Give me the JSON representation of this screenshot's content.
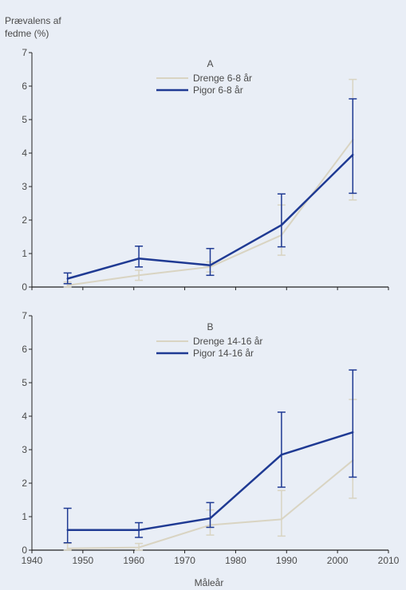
{
  "figure": {
    "ylabel_line1": "Prævalens af",
    "ylabel_line2": "fedme (%)",
    "xlabel": "Måleår",
    "background": "#e9eef6",
    "axis_color": "#222222"
  },
  "chart_data": [
    {
      "type": "line",
      "panel_label": "A",
      "ylim": [
        0,
        7
      ],
      "yticks": [
        0,
        1,
        2,
        3,
        4,
        5,
        6,
        7
      ],
      "xlim": [
        1940,
        2010
      ],
      "xticks": [
        1940,
        1950,
        1960,
        1970,
        1980,
        1990,
        2000,
        2010
      ],
      "show_xtick_labels": false,
      "legend_position": "top-center",
      "series": [
        {
          "name": "Drenge 6-8 år",
          "color": "#d9d4c2",
          "x": [
            1947,
            1961,
            1975,
            1989,
            2003
          ],
          "y": [
            0.05,
            0.35,
            0.6,
            1.55,
            4.4
          ],
          "err_low": [
            0.0,
            0.2,
            0.45,
            0.95,
            2.6
          ],
          "err_high": [
            0.15,
            0.5,
            0.75,
            2.45,
            6.2
          ]
        },
        {
          "name": "Pigor 6-8 år",
          "color": "#1f3a93",
          "x": [
            1947,
            1961,
            1975,
            1989,
            2003
          ],
          "y": [
            0.25,
            0.85,
            0.65,
            1.85,
            3.95
          ],
          "err_low": [
            0.1,
            0.6,
            0.35,
            1.2,
            2.8
          ],
          "err_high": [
            0.42,
            1.22,
            1.15,
            2.78,
            5.62
          ]
        }
      ]
    },
    {
      "type": "line",
      "panel_label": "B",
      "ylim": [
        0,
        7
      ],
      "yticks": [
        0,
        1,
        2,
        3,
        4,
        5,
        6,
        7
      ],
      "xlim": [
        1940,
        2010
      ],
      "xticks": [
        1940,
        1950,
        1960,
        1970,
        1980,
        1990,
        2000,
        2010
      ],
      "show_xtick_labels": true,
      "legend_position": "top-center",
      "series": [
        {
          "name": "Drenge 14-16 år",
          "color": "#d9d4c2",
          "x": [
            1947,
            1961,
            1975,
            1989,
            2003
          ],
          "y": [
            0.05,
            0.08,
            0.75,
            0.92,
            2.68
          ],
          "err_low": [
            0.0,
            0.0,
            0.45,
            0.42,
            1.55
          ],
          "err_high": [
            0.2,
            0.2,
            1.2,
            1.78,
            4.5
          ]
        },
        {
          "name": "Pigor 14-16 år",
          "color": "#1f3a93",
          "x": [
            1947,
            1961,
            1975,
            1989,
            2003
          ],
          "y": [
            0.6,
            0.6,
            0.95,
            2.85,
            3.52
          ],
          "err_low": [
            0.22,
            0.38,
            0.68,
            1.88,
            2.18
          ],
          "err_high": [
            1.25,
            0.82,
            1.42,
            4.12,
            5.38
          ]
        }
      ]
    }
  ]
}
